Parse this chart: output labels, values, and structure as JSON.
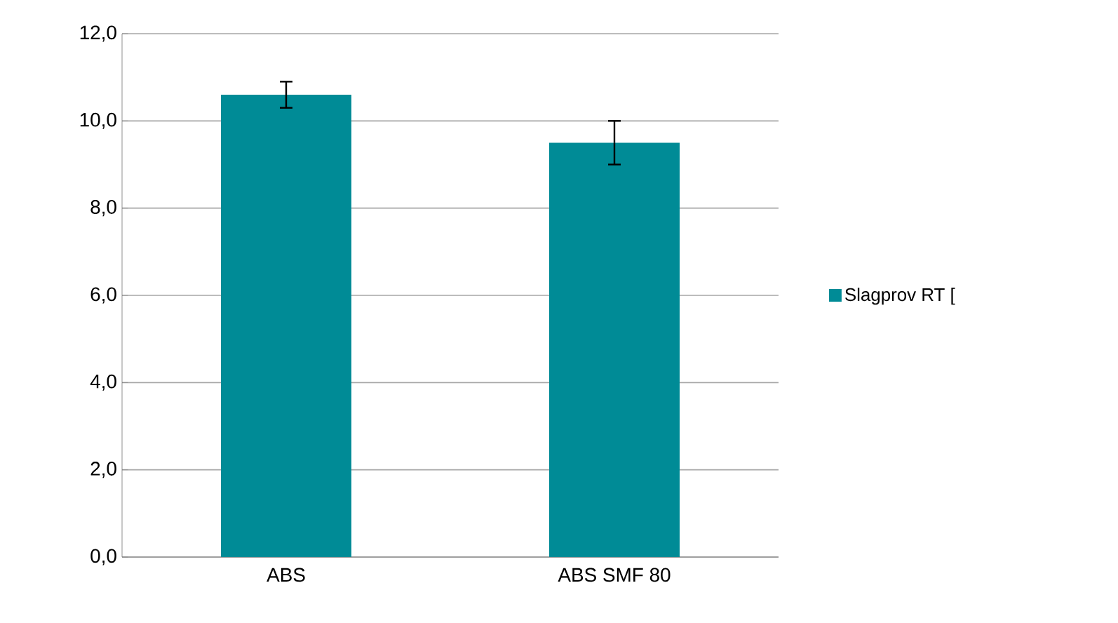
{
  "chart_data": {
    "type": "bar",
    "categories": [
      "ABS",
      "ABS SMF 80"
    ],
    "series": [
      {
        "name": "Slagprov RT [",
        "color": "#008b96",
        "values": [
          10.6,
          9.5
        ],
        "errors": [
          0.3,
          0.5
        ]
      }
    ],
    "ylim": [
      0,
      12
    ],
    "yticks": [
      {
        "value": 0,
        "label": "0,0"
      },
      {
        "value": 2,
        "label": "2,0"
      },
      {
        "value": 4,
        "label": "4,0"
      },
      {
        "value": 6,
        "label": "6,0"
      },
      {
        "value": 8,
        "label": "8,0"
      },
      {
        "value": 10,
        "label": "10,0"
      },
      {
        "value": 12,
        "label": "12,0"
      }
    ],
    "grid": "y",
    "legend": "right"
  }
}
